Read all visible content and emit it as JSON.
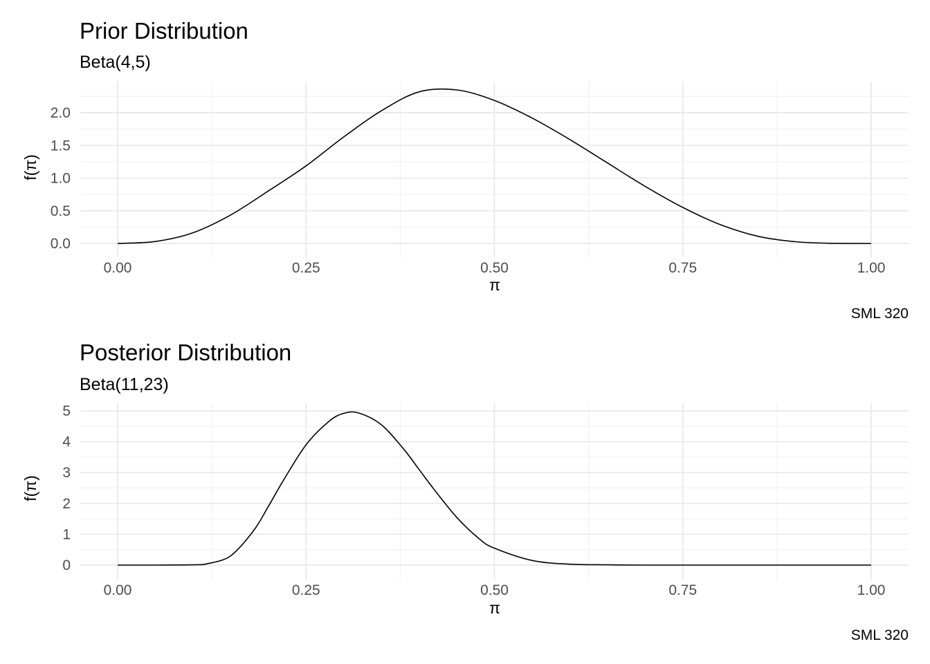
{
  "chart_data": [
    {
      "type": "line",
      "title": "Prior Distribution",
      "subtitle": "Beta(4,5)",
      "xlabel": "π",
      "ylabel": "f(π)",
      "caption": "SML 320",
      "xlim": [
        0,
        1
      ],
      "ylim": [
        0,
        2.35
      ],
      "x_ticks": [
        "0.00",
        "0.25",
        "0.50",
        "0.75",
        "1.00"
      ],
      "y_ticks": [
        "0.0",
        "0.5",
        "1.0",
        "1.5",
        "2.0"
      ],
      "series": [
        {
          "x": [
            0,
            0.05,
            0.1,
            0.15,
            0.2,
            0.25,
            0.3,
            0.35,
            0.4,
            0.45,
            0.5,
            0.55,
            0.6,
            0.65,
            0.7,
            0.75,
            0.8,
            0.85,
            0.9,
            0.95,
            1
          ],
          "values": [
            0,
            0.03,
            0.164,
            0.436,
            0.803,
            1.187,
            1.63,
            2.03,
            2.32,
            2.349,
            2.188,
            1.919,
            1.59,
            1.232,
            0.874,
            0.551,
            0.287,
            0.109,
            0.026,
            0.002,
            0
          ]
        }
      ],
      "grid": true
    },
    {
      "type": "line",
      "title": "Posterior Distribution",
      "subtitle": "Beta(11,23)",
      "xlabel": "π",
      "ylabel": "f(π)",
      "caption": "SML 320",
      "xlim": [
        0,
        1
      ],
      "ylim": [
        0,
        5
      ],
      "x_ticks": [
        "0.00",
        "0.25",
        "0.50",
        "0.75",
        "1.00"
      ],
      "y_ticks": [
        "0",
        "1",
        "2",
        "3",
        "4",
        "5"
      ],
      "series": [
        {
          "x": [
            0,
            0.05,
            0.1,
            0.12,
            0.15,
            0.18,
            0.2,
            0.22,
            0.25,
            0.28,
            0.3,
            0.32,
            0.35,
            0.38,
            0.4,
            0.42,
            0.45,
            0.48,
            0.5,
            0.55,
            0.6,
            0.65,
            0.7,
            0.8,
            0.9,
            1
          ],
          "values": [
            0,
            0,
            0.01,
            0.05,
            0.3,
            1.1,
            1.9,
            2.75,
            3.9,
            4.65,
            4.92,
            4.93,
            4.55,
            3.75,
            3.1,
            2.45,
            1.55,
            0.85,
            0.55,
            0.15,
            0.03,
            0.01,
            0,
            0,
            0,
            0
          ]
        }
      ],
      "grid": true
    }
  ]
}
